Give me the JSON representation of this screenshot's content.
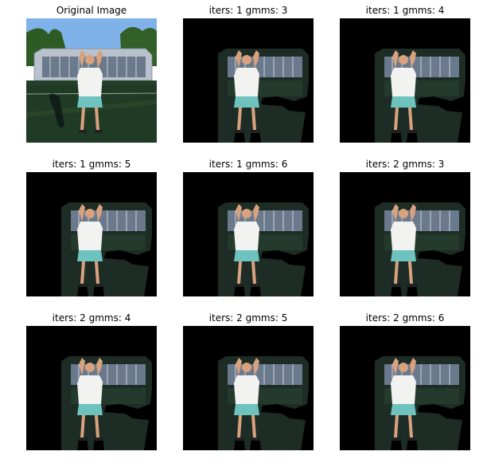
{
  "panels": [
    {
      "title": "Original Image",
      "kind": "original"
    },
    {
      "title": "iters: 1 gmms: 3",
      "kind": "mask"
    },
    {
      "title": "iters: 1 gmms: 4",
      "kind": "mask"
    },
    {
      "title": "iters: 1 gmms: 5",
      "kind": "mask"
    },
    {
      "title": "iters: 1 gmms: 6",
      "kind": "mask"
    },
    {
      "title": "iters: 2 gmms: 3",
      "kind": "mask"
    },
    {
      "title": "iters: 2 gmms: 4",
      "kind": "mask"
    },
    {
      "title": "iters: 2 gmms: 5",
      "kind": "mask"
    },
    {
      "title": "iters: 2 gmms: 6",
      "kind": "mask"
    }
  ],
  "colors": {
    "background": "#000000",
    "sky": "#6fa6e0",
    "trees": "#2f5a24",
    "court": "#213528",
    "building": "#6a7a8c",
    "shirt": "#f2f2f0",
    "shorts": "#6ec3bf",
    "skin": "#d9a27e"
  }
}
